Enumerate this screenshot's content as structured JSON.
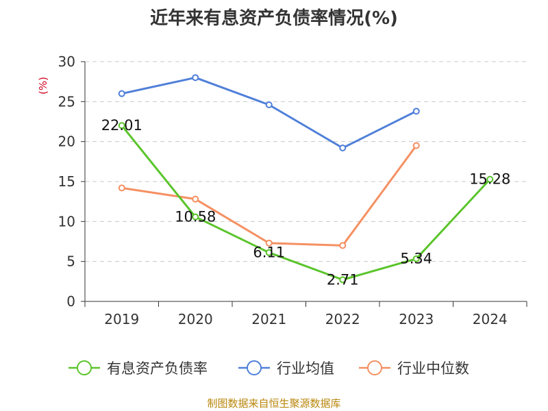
{
  "chart_data": {
    "type": "line",
    "title": "近年来有息资产负债率情况(%)",
    "ylabel": "(%)",
    "xlabel": "",
    "categories": [
      "2019",
      "2020",
      "2021",
      "2022",
      "2023",
      "2024"
    ],
    "ylim": [
      0,
      30
    ],
    "yticks": [
      0,
      5,
      10,
      15,
      20,
      25,
      30
    ],
    "grid": "horizontal-dashed",
    "legend_position": "bottom",
    "series": [
      {
        "name": "有息资产负债率",
        "color": "#5ac42a",
        "values": [
          22.01,
          10.58,
          6.11,
          2.71,
          5.34,
          15.28
        ],
        "labels": [
          "22.01",
          "10.58",
          "6.11",
          "2.71",
          "5.34",
          "15.28"
        ]
      },
      {
        "name": "行业均值",
        "color": "#4f7fd9",
        "values": [
          26.0,
          28.0,
          24.6,
          19.2,
          23.8,
          null
        ]
      },
      {
        "name": "行业中位数",
        "color": "#f59062",
        "values": [
          14.2,
          12.8,
          7.3,
          7.0,
          19.5,
          null
        ]
      }
    ]
  },
  "footer": "制图数据来自恒生聚源数据库"
}
